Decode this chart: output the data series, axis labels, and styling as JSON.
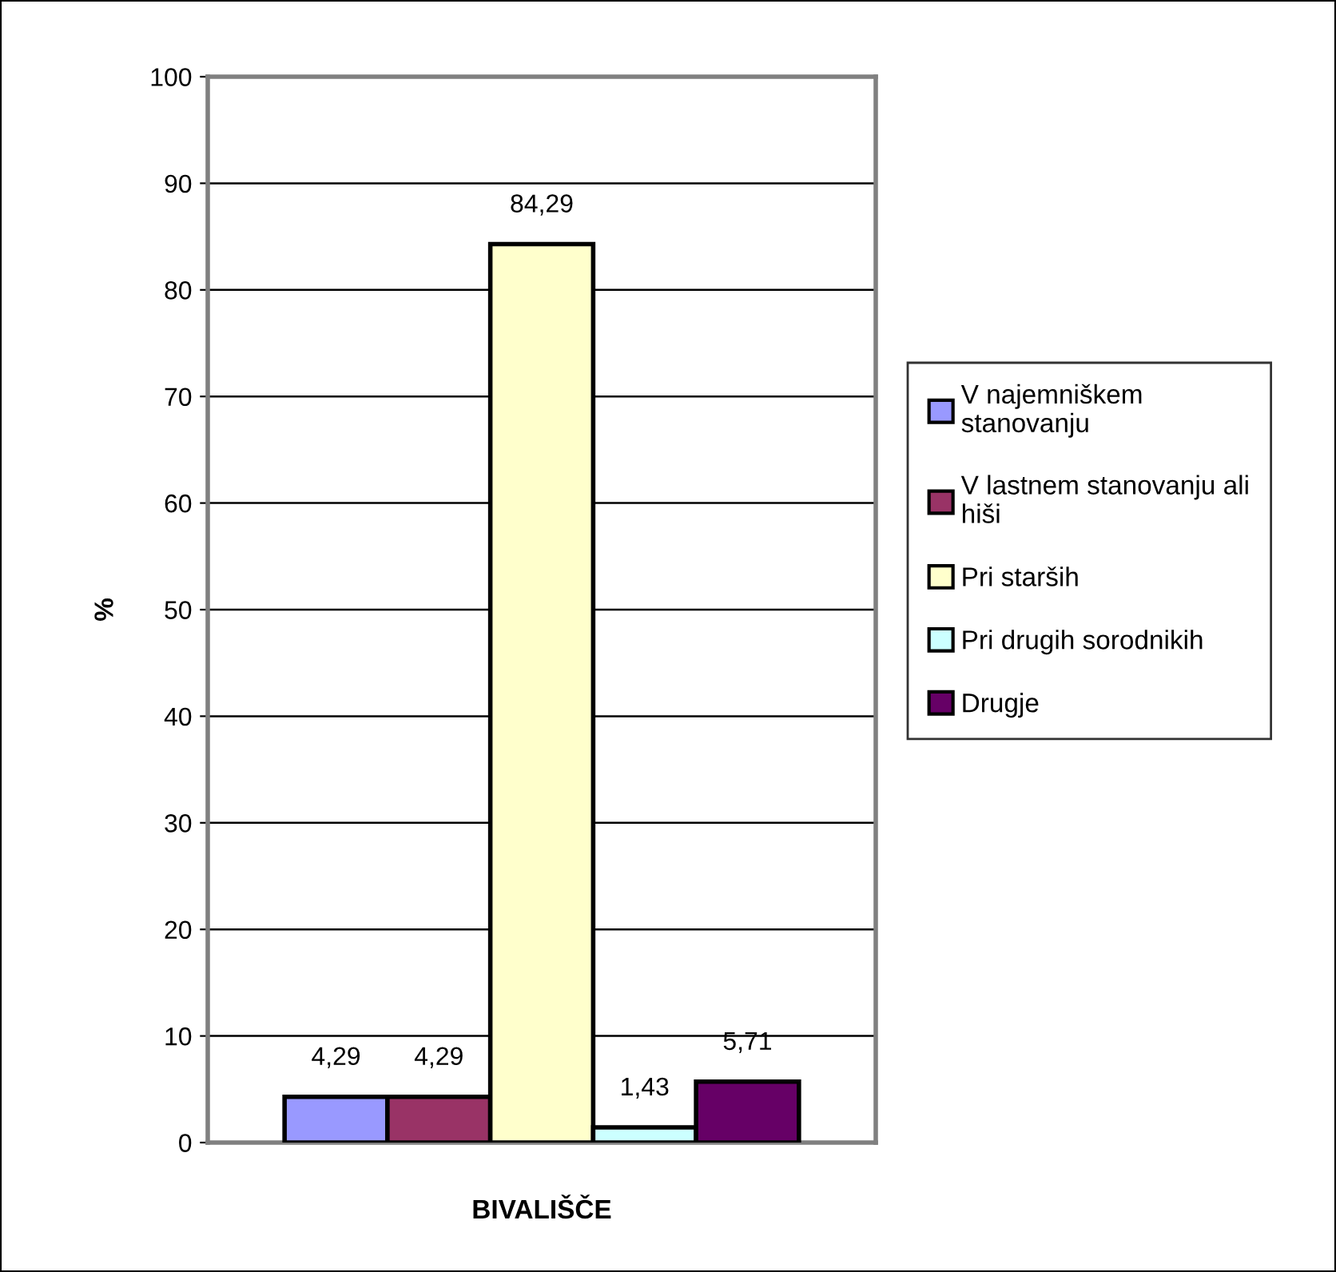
{
  "chart_data": {
    "type": "bar",
    "xlabel": "BIVALIŠČE",
    "ylabel": "%",
    "categories": [
      null
    ],
    "series": [
      {
        "name": "V najemniškem\nstanovanju",
        "color": "#9999ff",
        "values": [
          4.29
        ],
        "value_labels": [
          "4,29"
        ]
      },
      {
        "name": "V lastnem stanovanju ali\nhiši",
        "color": "#993366",
        "values": [
          4.29
        ],
        "value_labels": [
          "4,29"
        ]
      },
      {
        "name": "Pri starših",
        "color": "#ffffcc",
        "values": [
          84.29
        ],
        "value_labels": [
          "84,29"
        ]
      },
      {
        "name": "Pri drugih sorodnikih",
        "color": "#ccffff",
        "values": [
          1.43
        ],
        "value_labels": [
          "1,43"
        ]
      },
      {
        "name": "Drugje",
        "color": "#660066",
        "values": [
          5.71
        ],
        "value_labels": [
          "5,71"
        ]
      }
    ],
    "ylim": [
      0,
      100
    ],
    "yticks": [
      0,
      10,
      20,
      30,
      40,
      50,
      60,
      70,
      80,
      90,
      100
    ],
    "grid": "y",
    "legend": "right"
  }
}
